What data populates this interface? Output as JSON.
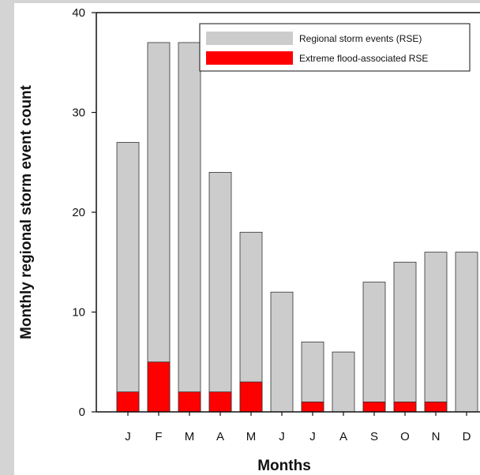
{
  "chart_data": {
    "type": "bar",
    "categories": [
      "J",
      "F",
      "M",
      "A",
      "M",
      "J",
      "J",
      "A",
      "S",
      "O",
      "N",
      "D"
    ],
    "series": [
      {
        "name": "Regional storm events (RSE)",
        "values": [
          27,
          37,
          37,
          24,
          18,
          12,
          7,
          6,
          13,
          15,
          16,
          16
        ],
        "color": "#cccccc"
      },
      {
        "name": "Extreme flood-associated RSE",
        "values": [
          2,
          5,
          2,
          2,
          3,
          0,
          1,
          0,
          1,
          1,
          1,
          0
        ],
        "color": "#ff0000"
      }
    ],
    "overlay": true,
    "xlabel": "Months",
    "ylabel": "Monthly regional storm event count",
    "ylim": [
      0,
      40
    ],
    "yticks": [
      0,
      10,
      20,
      30,
      40
    ],
    "grid": false,
    "legend": "top-right"
  }
}
